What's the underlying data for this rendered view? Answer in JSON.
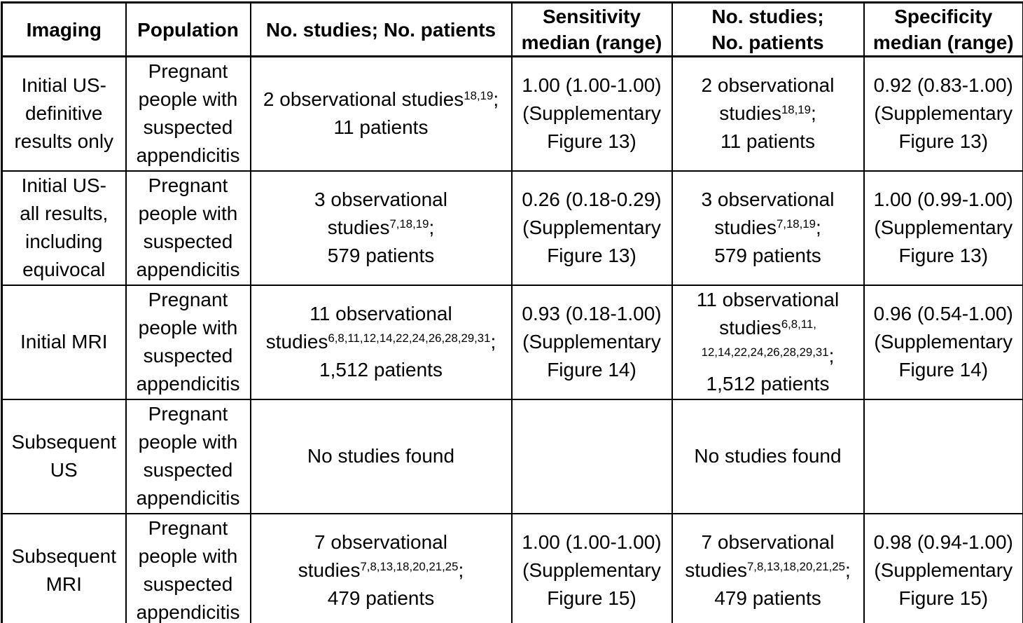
{
  "document": {
    "kind": "systematic-review results table",
    "topic": "Diagnostic accuracy of imaging for suspected appendicitis in pregnant people"
  },
  "colors": {
    "text": "#000000",
    "border": "#000000",
    "background": "#ffffff"
  },
  "table": {
    "columns": [
      {
        "id": "imaging",
        "lines": [
          "Imaging"
        ]
      },
      {
        "id": "population",
        "lines": [
          "Population"
        ]
      },
      {
        "id": "studies-patients-sens",
        "lines": [
          "No. studies; No. patients"
        ]
      },
      {
        "id": "sensitivity",
        "lines": [
          "Sensitivity",
          "median (range)"
        ]
      },
      {
        "id": "studies-patients-spec",
        "lines": [
          "No. studies;",
          "No. patients"
        ]
      },
      {
        "id": "specificity",
        "lines": [
          "Specificity",
          "median (range)"
        ]
      }
    ],
    "rows": [
      {
        "id": "initial-us-definitive",
        "cells": [
          [
            "Initial US-",
            "definitive",
            "results only"
          ],
          [
            "Pregnant",
            "people with",
            "suspected",
            "appendicitis"
          ],
          [
            "2 observational studies^{18,19};",
            "11 patients"
          ],
          [
            "1.00 (1.00-1.00)",
            "(Supplementary",
            "Figure 13)"
          ],
          [
            "2 observational",
            "studies^{18,19};",
            "11 patients"
          ],
          [
            "0.92 (0.83-1.00)",
            "(Supplementary",
            "Figure 13)"
          ]
        ]
      },
      {
        "id": "initial-us-all-results",
        "cells": [
          [
            "Initial US-",
            "all results,",
            "including",
            "equivocal"
          ],
          [
            "Pregnant",
            "people with",
            "suspected",
            "appendicitis"
          ],
          [
            "3 observational",
            "studies^{7,18,19};",
            "579 patients"
          ],
          [
            "0.26 (0.18-0.29)",
            "(Supplementary",
            "Figure 13)"
          ],
          [
            "3 observational",
            "studies^{7,18,19};",
            "579 patients"
          ],
          [
            "1.00 (0.99-1.00)",
            "(Supplementary",
            "Figure 13)"
          ]
        ]
      },
      {
        "id": "initial-mri",
        "cells": [
          [
            "Initial MRI"
          ],
          [
            "Pregnant",
            "people with",
            "suspected",
            "appendicitis"
          ],
          [
            "11 observational",
            "studies^{6,8,11,12,14,22,24,26,28,29,31};",
            "1,512 patients"
          ],
          [
            "0.93 (0.18-1.00)",
            "(Supplementary",
            "Figure 14)"
          ],
          [
            "11 observational",
            "studies^{6,8,11,}",
            "^{12,14,22,24,26,28,29,31};",
            "1,512 patients"
          ],
          [
            "0.96 (0.54-1.00)",
            "(Supplementary",
            "Figure 14)"
          ]
        ]
      },
      {
        "id": "subsequent-us",
        "cells": [
          [
            "Subsequent",
            "US"
          ],
          [
            "Pregnant",
            "people with",
            "suspected",
            "appendicitis"
          ],
          [
            "No studies found"
          ],
          [],
          [
            "No studies found"
          ],
          []
        ]
      },
      {
        "id": "subsequent-mri",
        "cells": [
          [
            "Subsequent",
            "MRI"
          ],
          [
            "Pregnant",
            "people with",
            "suspected",
            "appendicitis"
          ],
          [
            "7 observational",
            "studies^{7,8,13,18,20,21,25};",
            "479 patients"
          ],
          [
            "1.00 (1.00-1.00)",
            "(Supplementary",
            "Figure 15)"
          ],
          [
            "7 observational",
            "studies^{7,8,13,18,20,21,25};",
            "479 patients"
          ],
          [
            "0.98 (0.94-1.00)",
            "(Supplementary",
            "Figure 15)"
          ]
        ]
      }
    ]
  }
}
